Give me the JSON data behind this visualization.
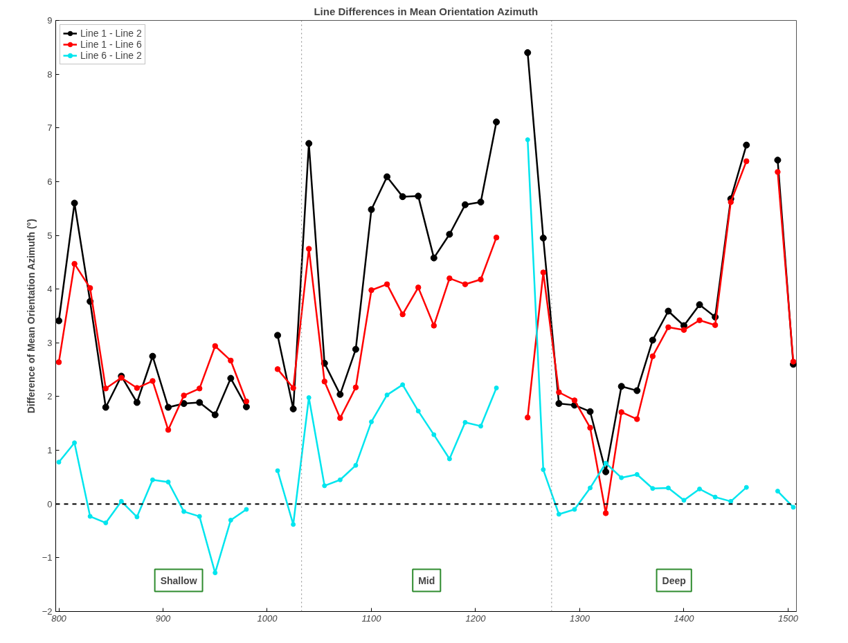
{
  "chart_data": {
    "type": "line",
    "title": "Line Differences in Mean Orientation Azimuth",
    "ylabel": "Difference of Mean Orientation Azimuth (°)",
    "x": [
      800,
      815,
      830,
      845,
      860,
      875,
      890,
      905,
      920,
      935,
      950,
      965,
      980,
      995,
      1010,
      1025,
      1040,
      1055,
      1070,
      1085,
      1100,
      1115,
      1130,
      1145,
      1160,
      1175,
      1190,
      1205,
      1220,
      1235,
      1250,
      1265,
      1280,
      1295,
      1310,
      1325,
      1340,
      1355,
      1370,
      1385,
      1400,
      1415,
      1430,
      1445,
      1460,
      1475,
      1490,
      1505
    ],
    "series": [
      {
        "name": "Line 1 - Line 2",
        "color": "#000000",
        "values": [
          3.41,
          5.6,
          3.77,
          1.8,
          2.38,
          1.89,
          2.75,
          1.8,
          1.87,
          1.89,
          1.66,
          2.34,
          1.81,
          null,
          3.14,
          1.77,
          6.71,
          2.62,
          2.04,
          2.88,
          5.48,
          6.09,
          5.72,
          5.73,
          4.58,
          5.02,
          5.57,
          5.62,
          7.11,
          null,
          8.4,
          4.95,
          1.87,
          1.84,
          1.72,
          0.6,
          2.19,
          2.11,
          3.05,
          3.59,
          3.32,
          3.71,
          3.48,
          5.68,
          6.68,
          null,
          6.4,
          2.6
        ]
      },
      {
        "name": "Line 1 - Line 6",
        "color": "#ff0000",
        "values": [
          2.64,
          4.47,
          4.02,
          2.15,
          2.35,
          2.16,
          2.29,
          1.38,
          2.02,
          2.15,
          2.94,
          2.67,
          1.91,
          null,
          2.51,
          2.16,
          4.75,
          2.28,
          1.6,
          2.17,
          3.98,
          4.09,
          3.53,
          4.03,
          3.32,
          4.2,
          4.09,
          4.18,
          4.96,
          null,
          1.61,
          4.31,
          2.08,
          1.93,
          1.42,
          -0.17,
          1.71,
          1.58,
          2.75,
          3.29,
          3.24,
          3.42,
          3.33,
          5.62,
          6.38,
          null,
          6.18,
          2.65
        ]
      },
      {
        "name": "Line 6 - Line 2",
        "color": "#00e5ee",
        "values": [
          0.78,
          1.14,
          -0.23,
          -0.35,
          0.05,
          -0.24,
          0.45,
          0.41,
          -0.14,
          -0.23,
          -1.28,
          -0.3,
          -0.1,
          null,
          0.62,
          -0.38,
          1.98,
          0.34,
          0.45,
          0.72,
          1.53,
          2.03,
          2.22,
          1.73,
          1.29,
          0.84,
          1.52,
          1.45,
          2.16,
          null,
          6.78,
          0.64,
          -0.19,
          -0.1,
          0.3,
          0.76,
          0.49,
          0.55,
          0.29,
          0.3,
          0.07,
          0.28,
          0.13,
          0.05,
          0.31,
          null,
          0.24,
          -0.06
        ]
      }
    ],
    "xlim": [
      797,
      1508
    ],
    "ylim": [
      -2,
      9
    ],
    "xticks": [
      800,
      900,
      1000,
      1100,
      1200,
      1300,
      1400,
      1500
    ],
    "yticks": [
      -2,
      -1,
      0,
      1,
      2,
      3,
      4,
      5,
      6,
      7,
      8,
      9
    ],
    "ref_lines": [
      {
        "axis": "y",
        "value": 0,
        "color": "#000000",
        "line_style": "dashed"
      },
      {
        "axis": "x",
        "value": 1033,
        "color": "#888888",
        "line_style": "dotted"
      },
      {
        "axis": "x",
        "value": 1273,
        "color": "#888888",
        "line_style": "dotted"
      }
    ],
    "annotations": [
      "Shallow",
      "Mid",
      "Deep"
    ],
    "grid": false,
    "legend": "top left",
    "marker": "circle",
    "line_style": "solid"
  }
}
